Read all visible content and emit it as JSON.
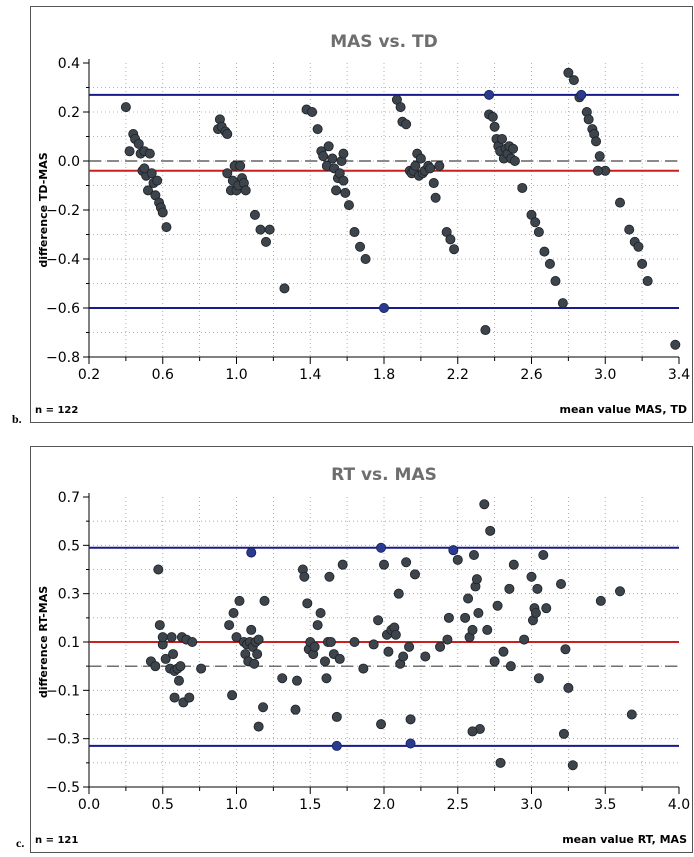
{
  "colors": {
    "title": "#6e6e6e",
    "limit_line": "#1a1a8c",
    "mean_line": "#cc1f1f",
    "zero_line": "#444444",
    "grid": "#9a9aa4",
    "point_fill": "#3d444c",
    "highlight_point": "#2a3a8e"
  },
  "chart_data": [
    {
      "panel_label": "b.",
      "type": "scatter",
      "title": "MAS vs. TD",
      "xlabel": "mean value MAS, TD",
      "ylabel": "difference TD-MAS",
      "n_label": "n = 122",
      "xlim": [
        0.2,
        3.4
      ],
      "ylim": [
        -0.8,
        0.4
      ],
      "xticks": [
        "0.2",
        "0.6",
        "1.0",
        "1.4",
        "1.8",
        "2.2",
        "2.6",
        "3.0",
        "3.4"
      ],
      "yticks": [
        "0.4",
        "0.2",
        "0.0",
        "-0.2",
        "-0.4",
        "-0.6",
        "-0.8"
      ],
      "grid": true,
      "mean_diff": -0.04,
      "upper_limit": 0.27,
      "lower_limit": -0.6,
      "zero_line": 0.0,
      "highlight_points": [
        [
          1.8,
          -0.6
        ],
        [
          2.37,
          0.27
        ],
        [
          2.87,
          0.27
        ]
      ],
      "points": [
        [
          0.4,
          0.22
        ],
        [
          0.42,
          0.04
        ],
        [
          0.44,
          0.11
        ],
        [
          0.45,
          0.09
        ],
        [
          0.47,
          0.07
        ],
        [
          0.48,
          0.03
        ],
        [
          0.49,
          -0.04
        ],
        [
          0.5,
          0.04
        ],
        [
          0.51,
          -0.06
        ],
        [
          0.52,
          -0.12
        ],
        [
          0.53,
          0.03
        ],
        [
          0.54,
          -0.05
        ],
        [
          0.55,
          -0.09
        ],
        [
          0.56,
          -0.14
        ],
        [
          0.57,
          -0.08
        ],
        [
          0.58,
          -0.17
        ],
        [
          0.59,
          -0.19
        ],
        [
          0.6,
          -0.21
        ],
        [
          0.62,
          -0.27
        ],
        [
          0.5,
          -0.03
        ],
        [
          0.9,
          0.13
        ],
        [
          0.91,
          0.17
        ],
        [
          0.92,
          0.14
        ],
        [
          0.94,
          0.12
        ],
        [
          0.95,
          0.11
        ],
        [
          0.95,
          -0.05
        ],
        [
          0.97,
          -0.12
        ],
        [
          0.98,
          -0.08
        ],
        [
          0.99,
          -0.02
        ],
        [
          1.0,
          -0.12
        ],
        [
          1.01,
          -0.1
        ],
        [
          1.02,
          -0.02
        ],
        [
          1.03,
          -0.07
        ],
        [
          1.04,
          -0.09
        ],
        [
          1.05,
          -0.12
        ],
        [
          1.1,
          -0.22
        ],
        [
          1.13,
          -0.28
        ],
        [
          1.16,
          -0.33
        ],
        [
          1.18,
          -0.28
        ],
        [
          1.26,
          -0.52
        ],
        [
          1.38,
          0.21
        ],
        [
          1.41,
          0.2
        ],
        [
          1.44,
          0.13
        ],
        [
          1.46,
          0.04
        ],
        [
          1.47,
          0.02
        ],
        [
          1.49,
          -0.02
        ],
        [
          1.5,
          0.06
        ],
        [
          1.52,
          0.01
        ],
        [
          1.53,
          -0.03
        ],
        [
          1.54,
          -0.12
        ],
        [
          1.55,
          -0.07
        ],
        [
          1.56,
          -0.05
        ],
        [
          1.57,
          0.0
        ],
        [
          1.58,
          0.03
        ],
        [
          1.59,
          -0.13
        ],
        [
          1.61,
          -0.18
        ],
        [
          1.64,
          -0.29
        ],
        [
          1.67,
          -0.35
        ],
        [
          1.7,
          -0.4
        ],
        [
          1.58,
          -0.08
        ],
        [
          1.87,
          0.25
        ],
        [
          1.89,
          0.22
        ],
        [
          1.9,
          0.16
        ],
        [
          1.92,
          0.15
        ],
        [
          1.94,
          -0.04
        ],
        [
          1.95,
          -0.05
        ],
        [
          1.96,
          -0.04
        ],
        [
          1.97,
          -0.02
        ],
        [
          1.98,
          0.03
        ],
        [
          1.99,
          -0.06
        ],
        [
          2.0,
          0.01
        ],
        [
          2.01,
          -0.05
        ],
        [
          2.02,
          -0.04
        ],
        [
          2.04,
          -0.02
        ],
        [
          2.05,
          -0.03
        ],
        [
          2.07,
          -0.09
        ],
        [
          2.08,
          -0.15
        ],
        [
          2.1,
          -0.02
        ],
        [
          2.14,
          -0.29
        ],
        [
          2.16,
          -0.32
        ],
        [
          2.18,
          -0.36
        ],
        [
          2.35,
          -0.69
        ],
        [
          2.37,
          0.19
        ],
        [
          2.39,
          0.18
        ],
        [
          2.4,
          0.14
        ],
        [
          2.41,
          0.09
        ],
        [
          2.42,
          0.06
        ],
        [
          2.43,
          0.04
        ],
        [
          2.44,
          0.09
        ],
        [
          2.45,
          0.01
        ],
        [
          2.46,
          0.05
        ],
        [
          2.47,
          0.03
        ],
        [
          2.48,
          0.06
        ],
        [
          2.49,
          0.01
        ],
        [
          2.5,
          0.05
        ],
        [
          2.51,
          0.0
        ],
        [
          2.55,
          -0.11
        ],
        [
          2.6,
          -0.22
        ],
        [
          2.62,
          -0.25
        ],
        [
          2.64,
          -0.29
        ],
        [
          2.67,
          -0.37
        ],
        [
          2.7,
          -0.42
        ],
        [
          2.73,
          -0.49
        ],
        [
          2.77,
          -0.58
        ],
        [
          2.8,
          0.36
        ],
        [
          2.83,
          0.33
        ],
        [
          2.86,
          0.26
        ],
        [
          2.9,
          0.2
        ],
        [
          2.91,
          0.17
        ],
        [
          2.93,
          0.13
        ],
        [
          2.94,
          0.11
        ],
        [
          2.95,
          0.08
        ],
        [
          2.97,
          0.02
        ],
        [
          3.0,
          -0.04
        ],
        [
          3.08,
          -0.17
        ],
        [
          3.13,
          -0.28
        ],
        [
          3.16,
          -0.33
        ],
        [
          3.18,
          -0.35
        ],
        [
          3.2,
          -0.42
        ],
        [
          3.23,
          -0.49
        ],
        [
          3.38,
          -0.75
        ],
        [
          2.96,
          -0.04
        ]
      ]
    },
    {
      "panel_label": "c.",
      "type": "scatter",
      "title": "RT vs. MAS",
      "xlabel": "mean value RT, MAS",
      "ylabel": "difference RT-MAS",
      "n_label": "n = 121",
      "xlim": [
        0.0,
        4.0
      ],
      "ylim": [
        -0.5,
        0.7
      ],
      "xticks": [
        "0.0",
        "0.5",
        "1.0",
        "1.5",
        "2.0",
        "2.5",
        "3.0",
        "3.5",
        "4.0"
      ],
      "yticks": [
        "0.7",
        "0.5",
        "0.3",
        "0.1",
        "-0.1",
        "-0.3",
        "-0.5"
      ],
      "grid": true,
      "mean_diff": 0.1,
      "upper_limit": 0.49,
      "lower_limit": -0.33,
      "zero_line": 0.0,
      "highlight_points": [
        [
          1.1,
          0.47
        ],
        [
          1.68,
          -0.33
        ],
        [
          1.98,
          0.49
        ],
        [
          2.18,
          -0.32
        ],
        [
          2.47,
          0.48
        ]
      ],
      "points": [
        [
          0.42,
          0.02
        ],
        [
          0.45,
          0.0
        ],
        [
          0.47,
          0.4
        ],
        [
          0.48,
          0.17
        ],
        [
          0.5,
          0.09
        ],
        [
          0.52,
          0.03
        ],
        [
          0.55,
          -0.01
        ],
        [
          0.56,
          0.12
        ],
        [
          0.57,
          0.05
        ],
        [
          0.58,
          -0.02
        ],
        [
          0.58,
          -0.13
        ],
        [
          0.6,
          -0.01
        ],
        [
          0.61,
          -0.06
        ],
        [
          0.62,
          0.0
        ],
        [
          0.63,
          0.12
        ],
        [
          0.64,
          -0.15
        ],
        [
          0.66,
          0.11
        ],
        [
          0.68,
          -0.13
        ],
        [
          0.7,
          0.1
        ],
        [
          0.76,
          -0.01
        ],
        [
          0.95,
          0.17
        ],
        [
          0.97,
          -0.12
        ],
        [
          0.98,
          0.22
        ],
        [
          1.0,
          0.12
        ],
        [
          1.02,
          0.27
        ],
        [
          1.05,
          0.1
        ],
        [
          1.06,
          0.05
        ],
        [
          1.07,
          0.09
        ],
        [
          1.08,
          0.02
        ],
        [
          1.09,
          0.1
        ],
        [
          1.1,
          0.15
        ],
        [
          1.11,
          0.08
        ],
        [
          1.12,
          0.01
        ],
        [
          1.13,
          0.1
        ],
        [
          1.14,
          0.05
        ],
        [
          1.15,
          -0.25
        ],
        [
          1.18,
          -0.17
        ],
        [
          1.19,
          0.27
        ],
        [
          1.31,
          -0.05
        ],
        [
          1.4,
          -0.18
        ],
        [
          1.41,
          -0.06
        ],
        [
          1.45,
          0.4
        ],
        [
          1.46,
          0.37
        ],
        [
          1.48,
          0.26
        ],
        [
          1.49,
          0.07
        ],
        [
          1.5,
          0.1
        ],
        [
          1.52,
          0.05
        ],
        [
          1.55,
          0.17
        ],
        [
          1.57,
          0.22
        ],
        [
          1.6,
          0.02
        ],
        [
          1.61,
          -0.05
        ],
        [
          1.62,
          0.1
        ],
        [
          1.63,
          0.37
        ],
        [
          1.64,
          0.1
        ],
        [
          1.66,
          0.05
        ],
        [
          1.68,
          -0.21
        ],
        [
          1.7,
          0.03
        ],
        [
          1.72,
          0.42
        ],
        [
          1.8,
          0.1
        ],
        [
          1.86,
          -0.01
        ],
        [
          1.93,
          0.09
        ],
        [
          1.96,
          0.19
        ],
        [
          1.98,
          -0.24
        ],
        [
          2.0,
          0.42
        ],
        [
          2.02,
          0.13
        ],
        [
          2.03,
          0.06
        ],
        [
          2.05,
          0.15
        ],
        [
          2.07,
          0.16
        ],
        [
          2.08,
          0.13
        ],
        [
          2.1,
          0.3
        ],
        [
          2.11,
          0.01
        ],
        [
          2.13,
          0.04
        ],
        [
          2.15,
          0.43
        ],
        [
          2.17,
          0.08
        ],
        [
          2.18,
          -0.22
        ],
        [
          2.21,
          0.38
        ],
        [
          2.28,
          0.04
        ],
        [
          2.38,
          0.08
        ],
        [
          2.43,
          0.11
        ],
        [
          2.44,
          0.2
        ],
        [
          2.5,
          0.44
        ],
        [
          2.55,
          0.2
        ],
        [
          2.57,
          0.28
        ],
        [
          2.58,
          0.12
        ],
        [
          2.6,
          0.15
        ],
        [
          2.61,
          0.46
        ],
        [
          2.62,
          0.33
        ],
        [
          2.63,
          0.36
        ],
        [
          2.64,
          0.22
        ],
        [
          2.65,
          -0.26
        ],
        [
          2.68,
          0.67
        ],
        [
          2.7,
          0.15
        ],
        [
          2.72,
          0.56
        ],
        [
          2.75,
          0.02
        ],
        [
          2.77,
          0.25
        ],
        [
          2.79,
          -0.4
        ],
        [
          2.81,
          0.06
        ],
        [
          2.85,
          0.32
        ],
        [
          2.86,
          0.0
        ],
        [
          2.88,
          0.42
        ],
        [
          2.95,
          0.11
        ],
        [
          3.0,
          0.37
        ],
        [
          3.01,
          0.19
        ],
        [
          3.02,
          0.24
        ],
        [
          3.03,
          0.22
        ],
        [
          3.04,
          0.32
        ],
        [
          3.05,
          -0.05
        ],
        [
          3.08,
          0.46
        ],
        [
          3.1,
          0.24
        ],
        [
          3.2,
          0.34
        ],
        [
          3.22,
          -0.28
        ],
        [
          3.23,
          0.07
        ],
        [
          3.25,
          -0.09
        ],
        [
          3.28,
          -0.41
        ],
        [
          3.47,
          0.27
        ],
        [
          3.6,
          0.31
        ],
        [
          3.68,
          -0.2
        ],
        [
          2.6,
          -0.27
        ],
        [
          1.15,
          0.11
        ],
        [
          0.5,
          0.12
        ],
        [
          1.53,
          0.08
        ]
      ]
    }
  ]
}
